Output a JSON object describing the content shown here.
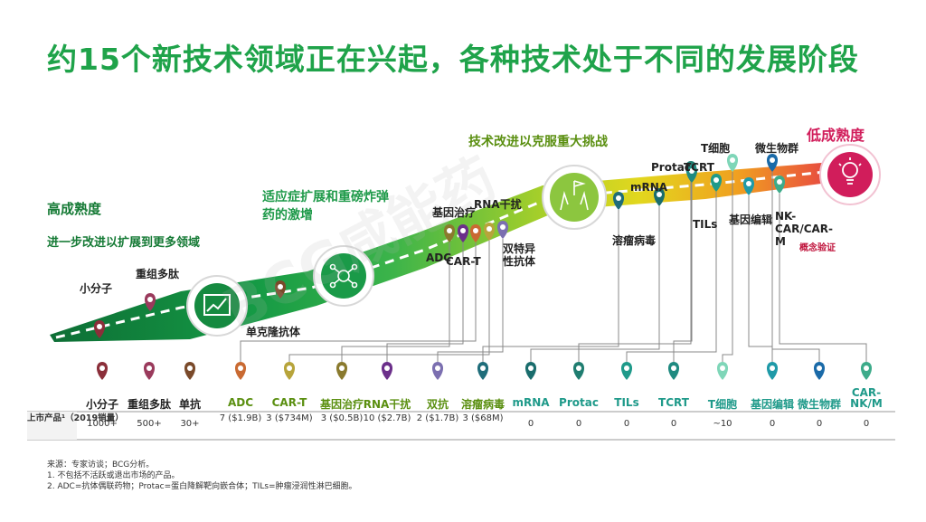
{
  "title": "约15个新技术领域正在兴起，各种技术处于不同的发展阶段",
  "stages": {
    "high_maturity": "高成熟度",
    "high_maturity_sub": "进一步改进以扩展到更多领域",
    "mid_stage": "适应症扩展和重磅炸弹药的激增",
    "late_stage": "技术改进以克服重大挑战",
    "low_maturity": "低成熟度",
    "concept": "概念验证"
  },
  "path_labels": [
    "小分子",
    "重组多肽",
    "单克隆抗体",
    "基因治疗",
    "RNA干扰",
    "ADC",
    "CAR-T",
    "双特异性抗体",
    "mRNA",
    "溶瘤病毒",
    "Protac",
    "TCRT",
    "T细胞",
    "TILs",
    "微生物群",
    "基因编辑",
    "NK-CAR/CAR-M"
  ],
  "table": {
    "row_header": "上市产品¹（2019销量）",
    "categories": [
      "小分子",
      "重组多肽",
      "单抗",
      "ADC",
      "CAR-T",
      "基因治疗",
      "RNA干扰",
      "双抗",
      "溶瘤病毒",
      "mRNA",
      "Protac",
      "TILs",
      "TCRT",
      "T细胞",
      "基因编辑",
      "微生物群",
      "CAR-NK/M"
    ],
    "values": [
      "1000+",
      "500+",
      "30+",
      "7 ($1.9B)",
      "3 ($734M)",
      "3 ($0.5B)",
      "10 ($2.7B)",
      "2 ($1.7B)",
      "3 ($68M)",
      "0",
      "0",
      "0",
      "0",
      "~10",
      "0",
      "0",
      "0"
    ]
  },
  "chart_data": {
    "type": "table",
    "categories": [
      "小分子",
      "重组多肽",
      "单抗",
      "ADC",
      "CAR-T",
      "基因治疗",
      "RNA干扰",
      "双抗",
      "溶瘤病毒",
      "mRNA",
      "Protac",
      "TILs",
      "TCRT",
      "T细胞",
      "基因编辑",
      "微生物群",
      "CAR-NK/M"
    ],
    "series": [
      {
        "name": "上市产品¹（2019销量）",
        "values": [
          "1000+",
          "500+",
          "30+",
          "7 ($1.9B)",
          "3 ($734M)",
          "3 ($0.5B)",
          "10 ($2.7B)",
          "2 ($1.7B)",
          "3 ($68M)",
          "0",
          "0",
          "0",
          "0",
          "~10",
          "0",
          "0",
          "0"
        ]
      }
    ]
  },
  "notes": [
    "来源：专家访谈；BCG分析。",
    "1. 不包括不活跃或退出市场的产品。",
    "2. ADC=抗体偶联药物；Protac=蛋白降解靶向嵌合体；TILs=肿瘤浸润性淋巴细胞。"
  ],
  "watermark": "BCG咸能药",
  "pin_colors": [
    "#8b2f3a",
    "#9a3a5c",
    "#7a4a2a",
    "#c96a32",
    "#b7a43b",
    "#8a7a2e",
    "#6b2f8a",
    "#7b6fb0",
    "#1f6d7a",
    "#1a6d6d",
    "#1f7d70",
    "#1f9a8a",
    "#1f8a80",
    "#7fd6b8",
    "#1f9aa8",
    "#1a6aa8",
    "#3dab8a"
  ],
  "colors": {
    "title": "#1fa34a",
    "band_start": "#0f7a3a",
    "band_end": "#d11d5b",
    "accent_red": "#d11d5b"
  }
}
